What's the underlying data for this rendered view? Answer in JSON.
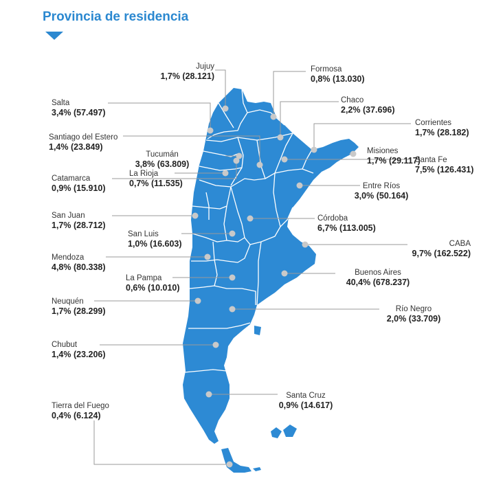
{
  "title": "Provincia de residencia",
  "colors": {
    "map_fill": "#2d8ad4",
    "accent": "#2b88d0",
    "leader": "#9a9a9a",
    "marker": "#c9c9c9"
  },
  "provinces": {
    "jujuy": {
      "name": "Jujuy",
      "value": "1,7% (28.121)"
    },
    "formosa": {
      "name": "Formosa",
      "value": "0,8% (13.030)"
    },
    "salta": {
      "name": "Salta",
      "value": "3,4% (57.497)"
    },
    "chaco": {
      "name": "Chaco",
      "value": "2,2% (37.696)"
    },
    "corrientes": {
      "name": "Corrientes",
      "value": "1,7% (28.182)"
    },
    "santiago": {
      "name": "Santiago del Estero",
      "value": "1,4% (23.849)"
    },
    "tucuman": {
      "name": "Tucumán",
      "value": "3,8% (63.809)"
    },
    "misiones": {
      "name": "Misiones",
      "value": "1,7% (29.117)"
    },
    "catamarca": {
      "name": "Catamarca",
      "value": "0,9% (15.910)"
    },
    "santafe": {
      "name": "Santa Fe",
      "value": "7,5% (126.431)"
    },
    "larioja": {
      "name": "La Rioja",
      "value": "0,7% (11.535)"
    },
    "entrerios": {
      "name": "Entre Ríos",
      "value": "3,0% (50.164)"
    },
    "sanjuan": {
      "name": "San Juan",
      "value": "1,7% (28.712)"
    },
    "cordoba": {
      "name": "Córdoba",
      "value": "6,7% (113.005)"
    },
    "sanluis": {
      "name": "San Luis",
      "value": "1,0% (16.603)"
    },
    "caba": {
      "name": "CABA",
      "value": "9,7% (162.522)"
    },
    "mendoza": {
      "name": "Mendoza",
      "value": "4,8% (80.338)"
    },
    "buenosaires": {
      "name": "Buenos Aires",
      "value": "40,4% (678.237)"
    },
    "lapampa": {
      "name": "La Pampa",
      "value": "0,6% (10.010)"
    },
    "neuquen": {
      "name": "Neuquén",
      "value": "1,7% (28.299)"
    },
    "rionegro": {
      "name": "Río Negro",
      "value": "2,0% (33.709)"
    },
    "chubut": {
      "name": "Chubut",
      "value": "1,4% (23.206)"
    },
    "santacruz": {
      "name": "Santa Cruz",
      "value": "0,9% (14.617)"
    },
    "tierradelfuego": {
      "name": "Tierra del Fuego",
      "value": "0,4% (6.124)"
    }
  }
}
